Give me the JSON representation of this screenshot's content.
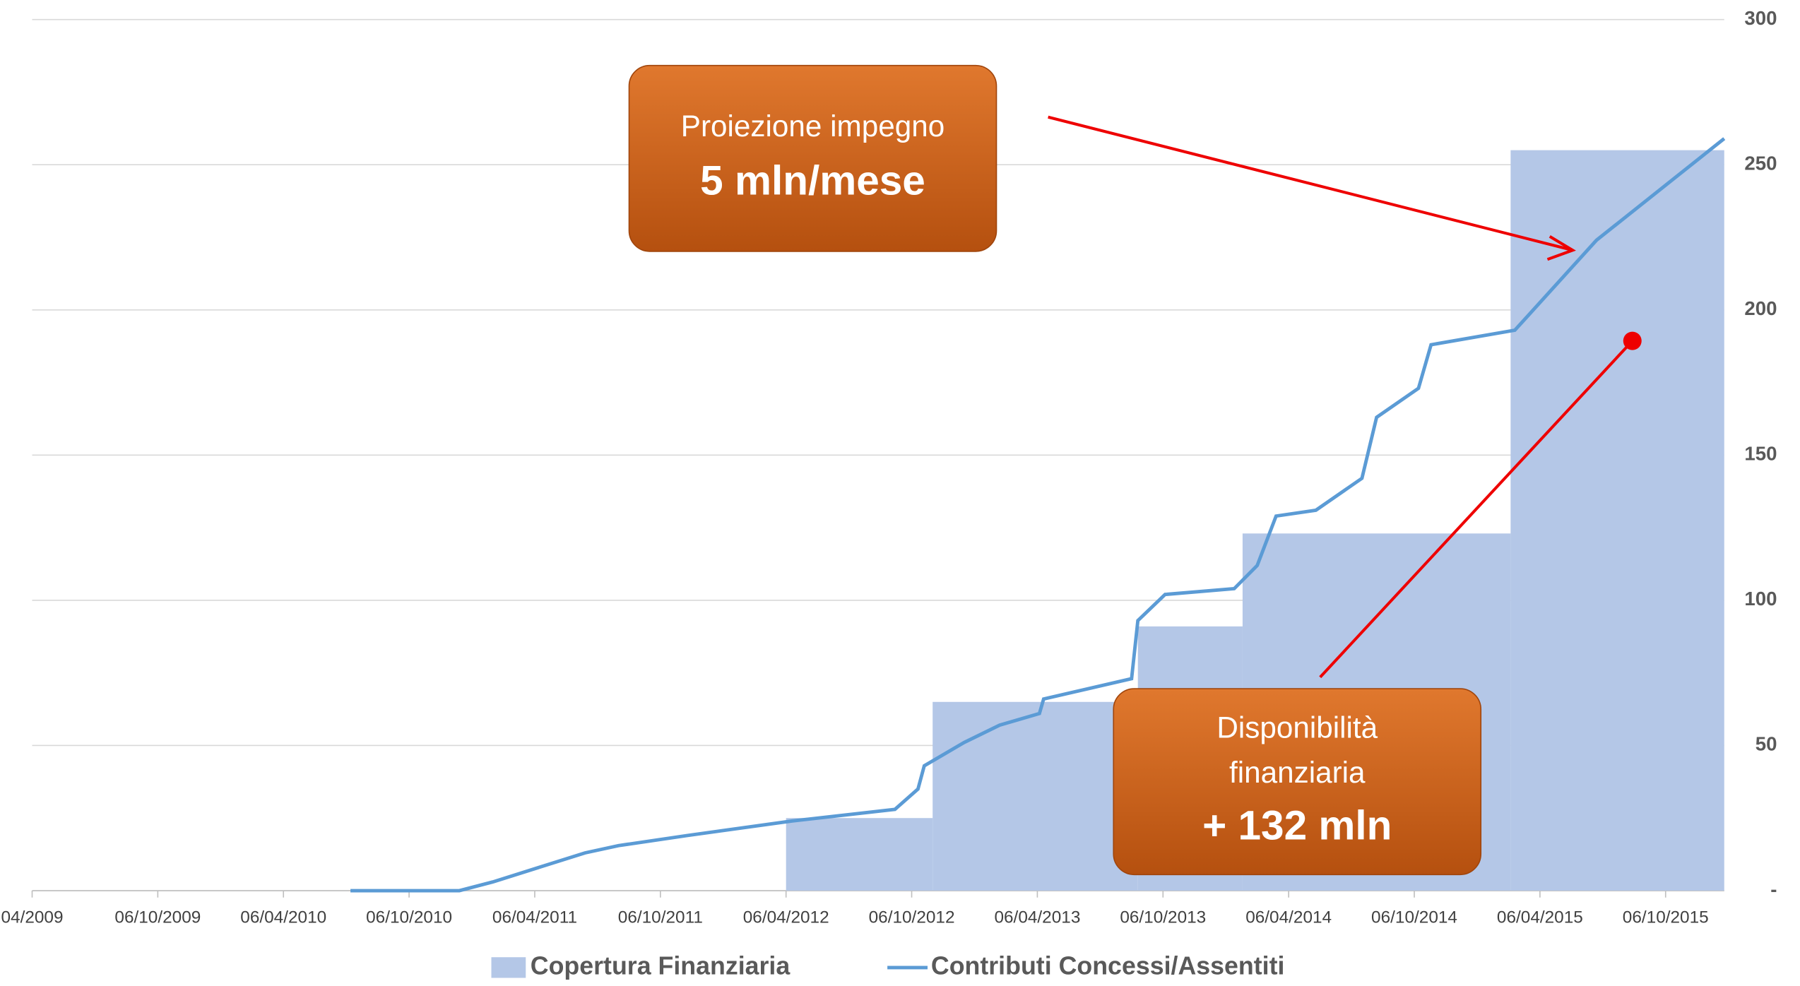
{
  "chart_data": {
    "type": "line",
    "xlim": [
      0,
      80.8
    ],
    "xticks": [
      {
        "value": 0,
        "label": "04/2009"
      },
      {
        "value": 6,
        "label": "06/10/2009"
      },
      {
        "value": 12,
        "label": "06/04/2010"
      },
      {
        "value": 18,
        "label": "06/10/2010"
      },
      {
        "value": 24,
        "label": "06/04/2011"
      },
      {
        "value": 30,
        "label": "06/10/2011"
      },
      {
        "value": 36,
        "label": "06/04/2012"
      },
      {
        "value": 42,
        "label": "06/10/2012"
      },
      {
        "value": 48,
        "label": "06/04/2013"
      },
      {
        "value": 54,
        "label": "06/10/2013"
      },
      {
        "value": 60,
        "label": "06/04/2014"
      },
      {
        "value": 66,
        "label": "06/10/2014"
      },
      {
        "value": 72,
        "label": "06/04/2015"
      },
      {
        "value": 78,
        "label": "06/10/2015"
      }
    ],
    "ylim": [
      0,
      300
    ],
    "yticks": [
      {
        "value": 0,
        "label": "-"
      },
      50,
      100,
      150,
      200,
      250,
      300
    ],
    "grid": true,
    "series": [
      {
        "name": "Copertura Finanziaria",
        "kind": "step-area",
        "color": "#b4c7e7",
        "x": [
          36,
          43,
          52.8,
          57.8,
          70.6
        ],
        "values": [
          25,
          65,
          91,
          123,
          255
        ]
      },
      {
        "name": "Contributi Concessi/Assentiti",
        "kind": "line",
        "color": "#5b9bd5",
        "x": [
          15.2,
          20.4,
          22,
          24.2,
          26.4,
          28,
          31.3,
          36.3,
          41.2,
          42.3,
          42.6,
          44.5,
          46.2,
          48.1,
          48.3,
          52.5,
          52.8,
          54.1,
          57.4,
          58.5,
          59.4,
          61.3,
          63.5,
          64.2,
          66.2,
          66.8,
          70.8,
          74.7,
          80.8
        ],
        "values": [
          0,
          0,
          3,
          8,
          13,
          15.5,
          19,
          24,
          28,
          35,
          43,
          51,
          57,
          61,
          66,
          73,
          93,
          102,
          104,
          112,
          129,
          131,
          142,
          163,
          173,
          188,
          193,
          224,
          259
        ]
      }
    ],
    "annotations": [
      {
        "lines": [
          "Proiezione impegno",
          "5 mln/mese"
        ]
      },
      {
        "lines": [
          "Disponibilità",
          "finanziaria",
          "+ 132 mln"
        ]
      }
    ]
  }
}
